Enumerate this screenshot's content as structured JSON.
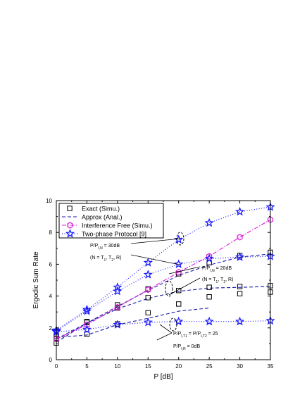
{
  "chart_data": {
    "type": "line",
    "xlabel": "P [dB]",
    "ylabel": "Ergodic Sum Rate",
    "xlim": [
      0,
      35
    ],
    "ylim": [
      0,
      10
    ],
    "xticks": [
      "0",
      "5",
      "10",
      "15",
      "20",
      "25",
      "30",
      "35"
    ],
    "yticks": [
      "0",
      "2",
      "4",
      "6",
      "8",
      "10"
    ],
    "legend": {
      "placement": "top-left",
      "entries": [
        "Exact (Simu.)",
        "Approx (Anal.)",
        "Interference Free (Simu.)",
        "Two-phase Protocol [9]"
      ]
    },
    "annotations": {
      "left_top": [
        "P/P",
        "I,N",
        " = 30dB"
      ],
      "left_bottom": [
        "(N = T",
        "1",
        ", T",
        "2",
        ", R)"
      ],
      "right_top": [
        "P/P",
        "I,N",
        " = 20dB"
      ],
      "right_bottom": [
        "(N = T",
        "1",
        ", T",
        "2",
        ", R)"
      ],
      "lower_top": [
        "P/P",
        "I,T1",
        " = P/P",
        "I,T2",
        " = 25"
      ],
      "lower_bottom": [
        "P/P",
        "I,R",
        " = 0dB"
      ]
    },
    "series": [
      {
        "name": "Exact (Simu.)",
        "group": "30dB",
        "marker": "square",
        "x": [
          0,
          5,
          10,
          15,
          20,
          25,
          30,
          35
        ],
        "y": [
          1.05,
          2.35,
          3.45,
          4.45,
          5.4,
          6.1,
          6.55,
          6.75
        ]
      },
      {
        "name": "Approx (Anal.)",
        "group": "30dB",
        "style": "dash",
        "x": [
          0,
          5,
          10,
          15,
          20,
          25,
          30,
          35
        ],
        "y": [
          1.1,
          2.3,
          3.35,
          4.35,
          5.3,
          5.95,
          6.45,
          6.65
        ]
      },
      {
        "name": "Exact (Simu.)",
        "group": "20dB",
        "marker": "square",
        "x": [
          0,
          5,
          10,
          15,
          20,
          25,
          30,
          35
        ],
        "y": [
          1.35,
          2.4,
          3.25,
          3.9,
          4.35,
          4.55,
          4.6,
          4.65
        ]
      },
      {
        "name": "Approx (Anal.)",
        "group": "20dB",
        "style": "dash",
        "x": [
          0,
          5,
          10,
          15,
          20,
          25,
          30,
          35
        ],
        "y": [
          1.3,
          2.3,
          3.2,
          3.85,
          4.3,
          4.5,
          4.55,
          4.6
        ]
      },
      {
        "name": "Exact (Simu.)",
        "group": "fixed",
        "marker": "square",
        "x": [
          0,
          5,
          10,
          15,
          20,
          25,
          30,
          35
        ],
        "y": [
          1.45,
          1.6,
          2.25,
          2.95,
          3.5,
          3.95,
          4.15,
          4.25
        ]
      },
      {
        "name": "Approx (Anal.)",
        "group": "fixed",
        "style": "dash",
        "x": [
          0,
          5,
          10,
          15,
          20,
          25
        ],
        "y": [
          1.4,
          1.55,
          2.2,
          2.6,
          3.05,
          3.25
        ]
      },
      {
        "name": "Interference Free (Simu.)",
        "group": "free",
        "marker": "hexagon",
        "x": [
          0,
          5,
          10,
          15,
          20,
          25,
          30,
          35
        ],
        "y": [
          1.3,
          2.2,
          3.3,
          4.4,
          5.5,
          6.5,
          7.7,
          8.8
        ]
      },
      {
        "name": "Two-phase Protocol [9]",
        "group": "30dB",
        "marker": "star",
        "x": [
          0,
          5,
          10,
          15,
          20,
          25,
          30,
          35
        ],
        "y": [
          1.85,
          3.15,
          4.55,
          6.1,
          7.55,
          8.6,
          9.3,
          9.6
        ]
      },
      {
        "name": "Two-phase Protocol [9]",
        "group": "20dB",
        "marker": "star",
        "x": [
          0,
          5,
          10,
          15,
          20,
          25,
          30,
          35
        ],
        "y": [
          1.8,
          3.05,
          4.3,
          5.35,
          6.0,
          6.35,
          6.45,
          6.5
        ]
      },
      {
        "name": "Two-phase Protocol [9]",
        "group": "fixed",
        "marker": "star",
        "x": [
          0,
          5,
          10,
          15,
          20,
          25,
          30,
          35
        ],
        "y": [
          1.75,
          1.9,
          2.2,
          2.35,
          2.4,
          2.4,
          2.4,
          2.45
        ]
      }
    ],
    "colors": {
      "exact": "#000000",
      "approx": "#1a1aa8",
      "free": "#d81ad8",
      "twophase": "#1a1aff"
    }
  }
}
